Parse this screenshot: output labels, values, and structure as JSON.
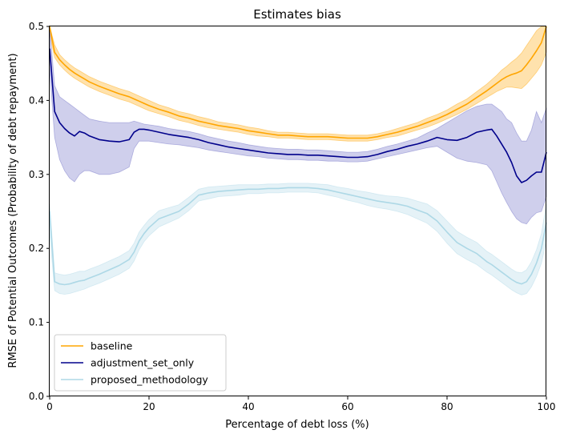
{
  "chart_data": {
    "type": "line",
    "title": "Estimates bias",
    "xlabel": "Percentage of debt loss (%)",
    "ylabel": "RMSE of Potential Outcomes (Probability of debt repayment)",
    "xlim": [
      0,
      100
    ],
    "ylim": [
      0,
      0.5
    ],
    "xticks": [
      0,
      20,
      40,
      60,
      80,
      100
    ],
    "xtick_labels": [
      "0",
      "20",
      "40",
      "60",
      "80",
      "100"
    ],
    "yticks": [
      0.0,
      0.1,
      0.2,
      0.3,
      0.4,
      0.5
    ],
    "ytick_labels": [
      "0.0",
      "0.1",
      "0.2",
      "0.3",
      "0.4",
      "0.5"
    ],
    "grid": false,
    "legend_position": "lower-left",
    "x": [
      0,
      1,
      2,
      3,
      4,
      5,
      6,
      7,
      8,
      10,
      12,
      14,
      16,
      17,
      18,
      19,
      20,
      22,
      24,
      26,
      28,
      30,
      32,
      34,
      36,
      38,
      40,
      42,
      44,
      46,
      48,
      50,
      52,
      54,
      56,
      58,
      60,
      62,
      64,
      66,
      68,
      70,
      72,
      74,
      76,
      78,
      80,
      82,
      84,
      86,
      88,
      89,
      90,
      91,
      92,
      93,
      94,
      95,
      96,
      97,
      98,
      99,
      100
    ],
    "series": [
      {
        "name": "baseline",
        "color": "#ffa500",
        "band_color": "#ffa500",
        "values": [
          0.5,
          0.465,
          0.455,
          0.448,
          0.442,
          0.437,
          0.433,
          0.429,
          0.425,
          0.419,
          0.414,
          0.409,
          0.405,
          0.402,
          0.399,
          0.396,
          0.393,
          0.388,
          0.384,
          0.379,
          0.376,
          0.372,
          0.369,
          0.366,
          0.364,
          0.362,
          0.359,
          0.357,
          0.355,
          0.353,
          0.353,
          0.352,
          0.351,
          0.351,
          0.351,
          0.35,
          0.349,
          0.349,
          0.349,
          0.351,
          0.354,
          0.357,
          0.361,
          0.365,
          0.37,
          0.375,
          0.381,
          0.388,
          0.395,
          0.404,
          0.413,
          0.418,
          0.423,
          0.428,
          0.432,
          0.435,
          0.437,
          0.44,
          0.448,
          0.457,
          0.467,
          0.478,
          0.5
        ],
        "lower": [
          0.49,
          0.458,
          0.448,
          0.441,
          0.435,
          0.43,
          0.426,
          0.422,
          0.418,
          0.412,
          0.407,
          0.402,
          0.398,
          0.395,
          0.392,
          0.389,
          0.386,
          0.382,
          0.378,
          0.373,
          0.37,
          0.366,
          0.363,
          0.361,
          0.359,
          0.357,
          0.354,
          0.352,
          0.351,
          0.349,
          0.349,
          0.348,
          0.347,
          0.347,
          0.347,
          0.346,
          0.345,
          0.345,
          0.345,
          0.347,
          0.35,
          0.352,
          0.356,
          0.36,
          0.364,
          0.369,
          0.375,
          0.381,
          0.388,
          0.396,
          0.404,
          0.408,
          0.412,
          0.415,
          0.418,
          0.418,
          0.417,
          0.416,
          0.422,
          0.43,
          0.438,
          0.448,
          0.465
        ],
        "upper": [
          0.5,
          0.475,
          0.462,
          0.455,
          0.449,
          0.444,
          0.44,
          0.436,
          0.432,
          0.426,
          0.421,
          0.416,
          0.412,
          0.409,
          0.406,
          0.403,
          0.4,
          0.394,
          0.39,
          0.385,
          0.382,
          0.378,
          0.375,
          0.371,
          0.369,
          0.367,
          0.364,
          0.362,
          0.359,
          0.357,
          0.357,
          0.356,
          0.355,
          0.355,
          0.355,
          0.354,
          0.353,
          0.353,
          0.353,
          0.355,
          0.358,
          0.362,
          0.366,
          0.37,
          0.376,
          0.381,
          0.387,
          0.395,
          0.402,
          0.412,
          0.422,
          0.428,
          0.434,
          0.441,
          0.446,
          0.452,
          0.457,
          0.464,
          0.474,
          0.484,
          0.494,
          0.5,
          0.5
        ]
      },
      {
        "name": "adjustment_set_only",
        "color": "#00008b",
        "band_color": "#6a6ac4",
        "values": [
          0.47,
          0.385,
          0.37,
          0.362,
          0.356,
          0.352,
          0.358,
          0.356,
          0.352,
          0.347,
          0.345,
          0.344,
          0.347,
          0.357,
          0.361,
          0.361,
          0.36,
          0.357,
          0.354,
          0.352,
          0.35,
          0.347,
          0.343,
          0.34,
          0.337,
          0.335,
          0.333,
          0.331,
          0.329,
          0.328,
          0.327,
          0.327,
          0.326,
          0.326,
          0.325,
          0.324,
          0.323,
          0.323,
          0.324,
          0.327,
          0.331,
          0.334,
          0.338,
          0.341,
          0.345,
          0.35,
          0.347,
          0.346,
          0.35,
          0.357,
          0.36,
          0.361,
          0.352,
          0.341,
          0.33,
          0.316,
          0.298,
          0.289,
          0.292,
          0.298,
          0.303,
          0.303,
          0.33
        ],
        "lower": [
          0.44,
          0.35,
          0.32,
          0.305,
          0.295,
          0.29,
          0.3,
          0.305,
          0.305,
          0.3,
          0.3,
          0.303,
          0.31,
          0.335,
          0.345,
          0.345,
          0.345,
          0.343,
          0.341,
          0.34,
          0.338,
          0.336,
          0.333,
          0.331,
          0.329,
          0.327,
          0.325,
          0.324,
          0.322,
          0.321,
          0.32,
          0.32,
          0.319,
          0.319,
          0.318,
          0.318,
          0.317,
          0.317,
          0.318,
          0.321,
          0.324,
          0.327,
          0.33,
          0.333,
          0.336,
          0.338,
          0.33,
          0.322,
          0.318,
          0.316,
          0.313,
          0.305,
          0.29,
          0.275,
          0.262,
          0.25,
          0.24,
          0.235,
          0.233,
          0.242,
          0.248,
          0.25,
          0.27
        ],
        "upper": [
          0.5,
          0.42,
          0.405,
          0.4,
          0.395,
          0.39,
          0.385,
          0.38,
          0.375,
          0.372,
          0.37,
          0.37,
          0.37,
          0.372,
          0.37,
          0.368,
          0.367,
          0.365,
          0.362,
          0.36,
          0.358,
          0.355,
          0.351,
          0.348,
          0.345,
          0.343,
          0.34,
          0.338,
          0.336,
          0.335,
          0.334,
          0.334,
          0.333,
          0.333,
          0.332,
          0.331,
          0.33,
          0.33,
          0.331,
          0.334,
          0.338,
          0.341,
          0.345,
          0.349,
          0.356,
          0.362,
          0.37,
          0.378,
          0.386,
          0.392,
          0.395,
          0.395,
          0.39,
          0.385,
          0.375,
          0.37,
          0.356,
          0.345,
          0.345,
          0.36,
          0.385,
          0.37,
          0.39
        ]
      },
      {
        "name": "proposed_methodology",
        "color": "#add8e6",
        "band_color": "#add8e6",
        "values": [
          0.25,
          0.155,
          0.152,
          0.151,
          0.152,
          0.154,
          0.156,
          0.157,
          0.16,
          0.165,
          0.171,
          0.177,
          0.185,
          0.195,
          0.21,
          0.22,
          0.228,
          0.24,
          0.245,
          0.25,
          0.26,
          0.272,
          0.275,
          0.277,
          0.278,
          0.279,
          0.28,
          0.28,
          0.281,
          0.281,
          0.282,
          0.282,
          0.282,
          0.281,
          0.279,
          0.276,
          0.273,
          0.27,
          0.267,
          0.264,
          0.262,
          0.26,
          0.257,
          0.252,
          0.247,
          0.237,
          0.222,
          0.208,
          0.2,
          0.193,
          0.182,
          0.178,
          0.173,
          0.168,
          0.163,
          0.158,
          0.154,
          0.152,
          0.155,
          0.165,
          0.18,
          0.2,
          0.235
        ],
        "lower": [
          0.22,
          0.143,
          0.139,
          0.138,
          0.139,
          0.141,
          0.143,
          0.145,
          0.148,
          0.153,
          0.159,
          0.165,
          0.173,
          0.183,
          0.198,
          0.209,
          0.217,
          0.229,
          0.235,
          0.241,
          0.251,
          0.264,
          0.267,
          0.27,
          0.271,
          0.272,
          0.274,
          0.274,
          0.275,
          0.275,
          0.276,
          0.276,
          0.276,
          0.275,
          0.272,
          0.269,
          0.265,
          0.262,
          0.258,
          0.255,
          0.253,
          0.25,
          0.246,
          0.24,
          0.234,
          0.223,
          0.207,
          0.193,
          0.185,
          0.178,
          0.168,
          0.164,
          0.159,
          0.154,
          0.149,
          0.144,
          0.14,
          0.137,
          0.139,
          0.148,
          0.162,
          0.18,
          0.21
        ],
        "upper": [
          0.26,
          0.167,
          0.165,
          0.164,
          0.165,
          0.167,
          0.169,
          0.169,
          0.172,
          0.177,
          0.183,
          0.189,
          0.197,
          0.207,
          0.222,
          0.231,
          0.239,
          0.251,
          0.255,
          0.259,
          0.269,
          0.28,
          0.283,
          0.284,
          0.285,
          0.286,
          0.286,
          0.286,
          0.287,
          0.287,
          0.288,
          0.288,
          0.288,
          0.287,
          0.286,
          0.283,
          0.281,
          0.278,
          0.276,
          0.273,
          0.271,
          0.27,
          0.268,
          0.264,
          0.26,
          0.251,
          0.237,
          0.223,
          0.215,
          0.208,
          0.196,
          0.192,
          0.187,
          0.182,
          0.177,
          0.172,
          0.168,
          0.167,
          0.171,
          0.182,
          0.198,
          0.22,
          0.26
        ]
      }
    ]
  }
}
